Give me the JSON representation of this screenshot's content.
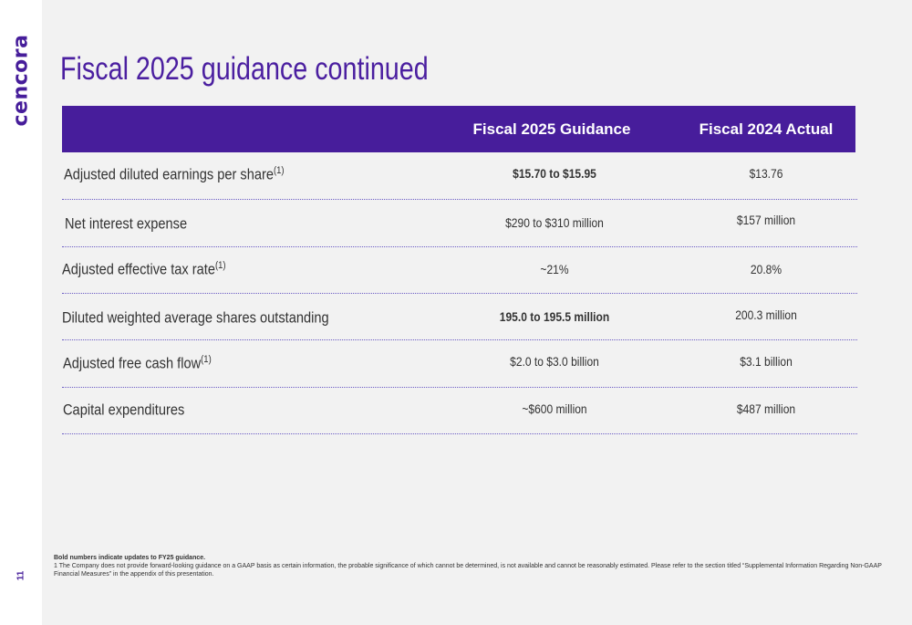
{
  "brand": {
    "logo_text": "cencora",
    "color": "#461d9a"
  },
  "page_number": "11",
  "title": "Fiscal 2025 guidance continued",
  "table": {
    "headers": [
      "",
      "Fiscal 2025 Guidance",
      "Fiscal 2024 Actual"
    ],
    "rows": [
      {
        "label": "Adjusted diluted earnings per share",
        "note": "(1)",
        "guidance": "$15.70 to $15.95",
        "guidance_bold": true,
        "actual": "$13.76"
      },
      {
        "label": "Net interest expense",
        "note": "",
        "guidance": "$290 to $310 million",
        "guidance_bold": false,
        "actual": "$157 million"
      },
      {
        "label": "Adjusted effective tax rate",
        "note": "(1)",
        "guidance": "~21%",
        "guidance_bold": false,
        "actual": "20.8%"
      },
      {
        "label": "Diluted weighted average shares outstanding",
        "note": "",
        "guidance": "195.0 to 195.5 million",
        "guidance_bold": true,
        "actual": "200.3 million"
      },
      {
        "label": "Adjusted free cash flow",
        "note": "(1)",
        "guidance": "$2.0 to $3.0 billion",
        "guidance_bold": false,
        "actual": "$3.1 billion"
      },
      {
        "label": "Capital expenditures",
        "note": "",
        "guidance": "~$600 million",
        "guidance_bold": false,
        "actual": "$487 million"
      }
    ]
  },
  "footnotes": {
    "bold_note": "Bold numbers indicate updates to FY25 guidance.",
    "note_1": "1  The Company does not provide forward-looking guidance on a GAAP basis as certain information, the probable significance of which cannot be determined, is not available and cannot be reasonably estimated. Please refer to the section titled “Supplemental Information Regarding Non-GAAP Financial Measures” in the appendix of this presentation."
  },
  "colors": {
    "header_bg": "#471d9b",
    "title": "#4b1fa0",
    "divider": "#6a5bc4"
  }
}
